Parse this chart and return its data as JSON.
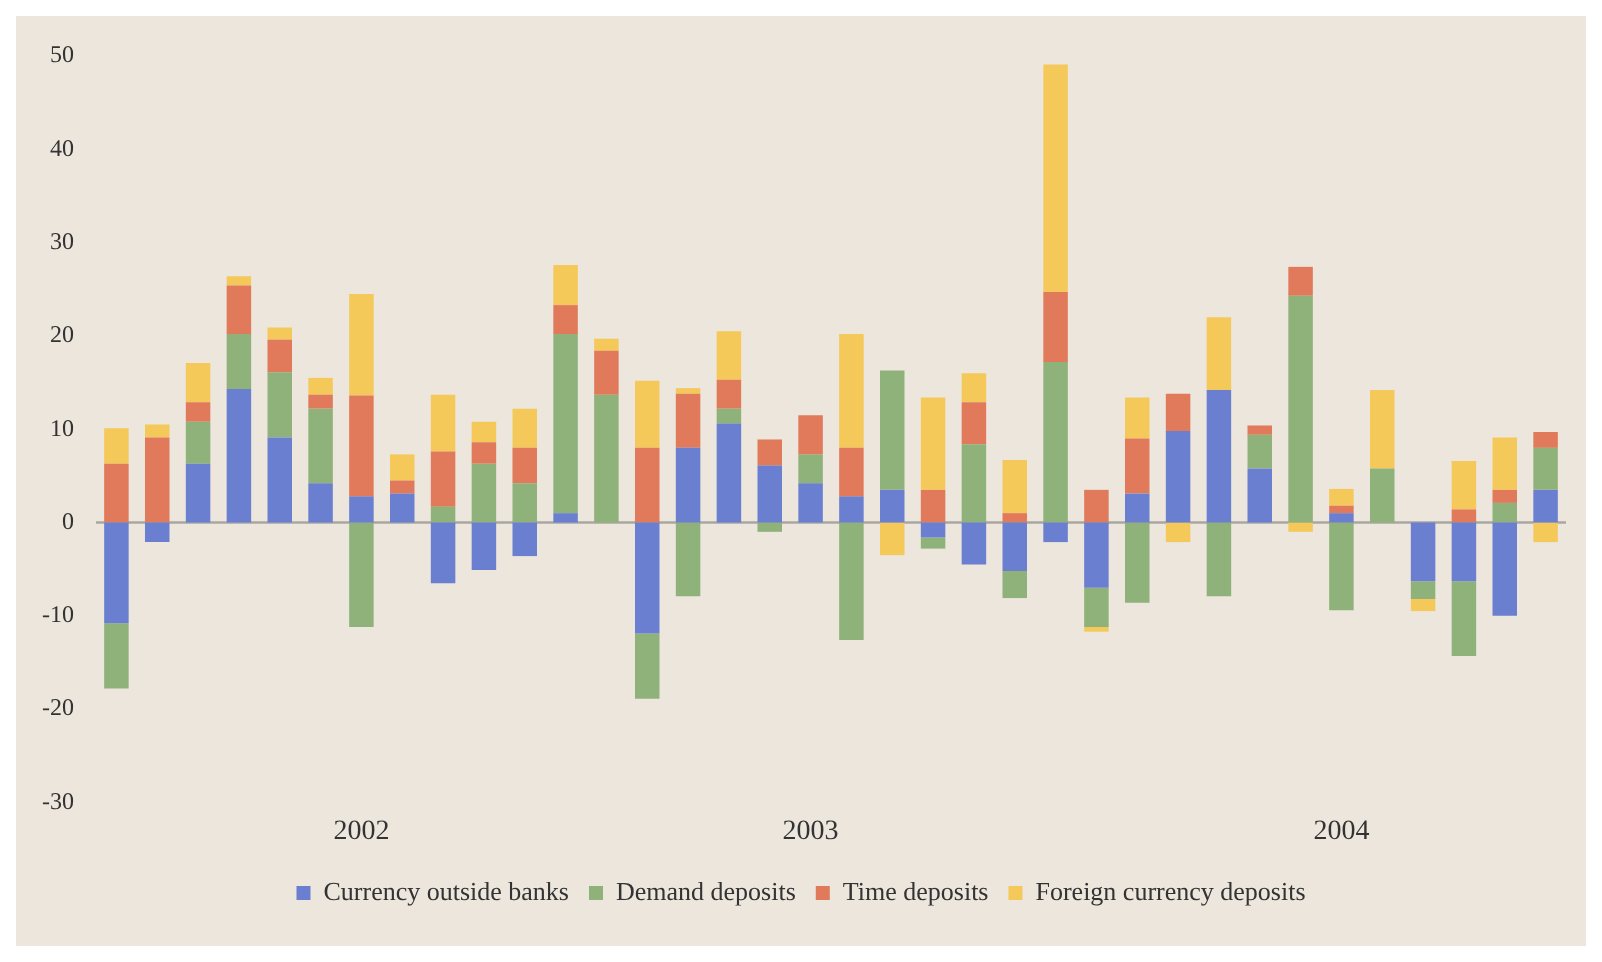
{
  "chart_data": {
    "type": "bar",
    "stacked": true,
    "categories": [
      null,
      null,
      null,
      null,
      null,
      null,
      "2002",
      null,
      null,
      null,
      null,
      null,
      null,
      null,
      null,
      null,
      null,
      "2003",
      null,
      null,
      null,
      null,
      null,
      null,
      null,
      null,
      null,
      null,
      null,
      null,
      "2004",
      null,
      null,
      null,
      null,
      null
    ],
    "series": [
      {
        "name": "Currency outside banks",
        "color": "#6a7fd0",
        "values": [
          -10.8,
          -2.1,
          6.3,
          14.3,
          9.1,
          4.2,
          2.8,
          3.1,
          -6.5,
          -5.1,
          -3.6,
          1.0,
          0,
          -11.9,
          8.0,
          10.6,
          6.1,
          4.2,
          2.8,
          3.5,
          -1.6,
          -4.5,
          -5.2,
          -2.1,
          -7.0,
          3.1,
          9.8,
          14.2,
          5.8,
          0,
          1.0,
          0,
          -6.3,
          -6.3,
          -10.0,
          3.5
        ]
      },
      {
        "name": "Demand deposits",
        "color": "#8fb27a",
        "values": [
          -7.0,
          0,
          4.5,
          5.9,
          7.0,
          8.0,
          -11.2,
          0,
          1.7,
          6.3,
          4.2,
          19.2,
          13.7,
          -7.0,
          -7.9,
          1.6,
          -1.0,
          3.1,
          -12.6,
          12.8,
          -1.2,
          8.4,
          -2.9,
          17.2,
          -4.2,
          -8.6,
          0,
          -7.9,
          3.6,
          24.3,
          -9.4,
          5.8,
          -1.9,
          -8.0,
          2.1,
          4.5
        ]
      },
      {
        "name": "Time deposits",
        "color": "#e07a5a",
        "values": [
          6.3,
          9.1,
          2.1,
          5.2,
          3.5,
          1.5,
          10.8,
          1.4,
          5.9,
          2.3,
          3.8,
          3.1,
          4.7,
          8.0,
          5.8,
          3.1,
          2.8,
          4.2,
          5.2,
          0,
          3.5,
          4.5,
          1.0,
          7.5,
          3.5,
          5.9,
          4.0,
          0,
          1.0,
          3.1,
          0.8,
          0,
          0,
          1.4,
          1.4,
          1.7
        ]
      },
      {
        "name": "Foreign currency deposits",
        "color": "#f5c85a",
        "values": [
          3.8,
          1.4,
          4.2,
          1.0,
          1.3,
          1.8,
          10.9,
          2.8,
          6.1,
          2.2,
          4.2,
          4.3,
          1.3,
          7.2,
          0.6,
          5.2,
          0,
          0,
          12.2,
          -3.5,
          9.9,
          3.1,
          5.7,
          24.4,
          -0.5,
          4.4,
          -2.1,
          7.8,
          0,
          -1.0,
          1.8,
          8.4,
          -1.3,
          5.2,
          5.6,
          -2.1
        ]
      }
    ],
    "ylim": [
      -30,
      50
    ],
    "yticks": [
      -30,
      -20,
      -10,
      0,
      10,
      20,
      30,
      40,
      50
    ],
    "ref_lines": [
      {
        "axis": "y",
        "value": 0,
        "color": "#aaa6a0"
      }
    ],
    "grid": false,
    "legend": "bottom"
  }
}
